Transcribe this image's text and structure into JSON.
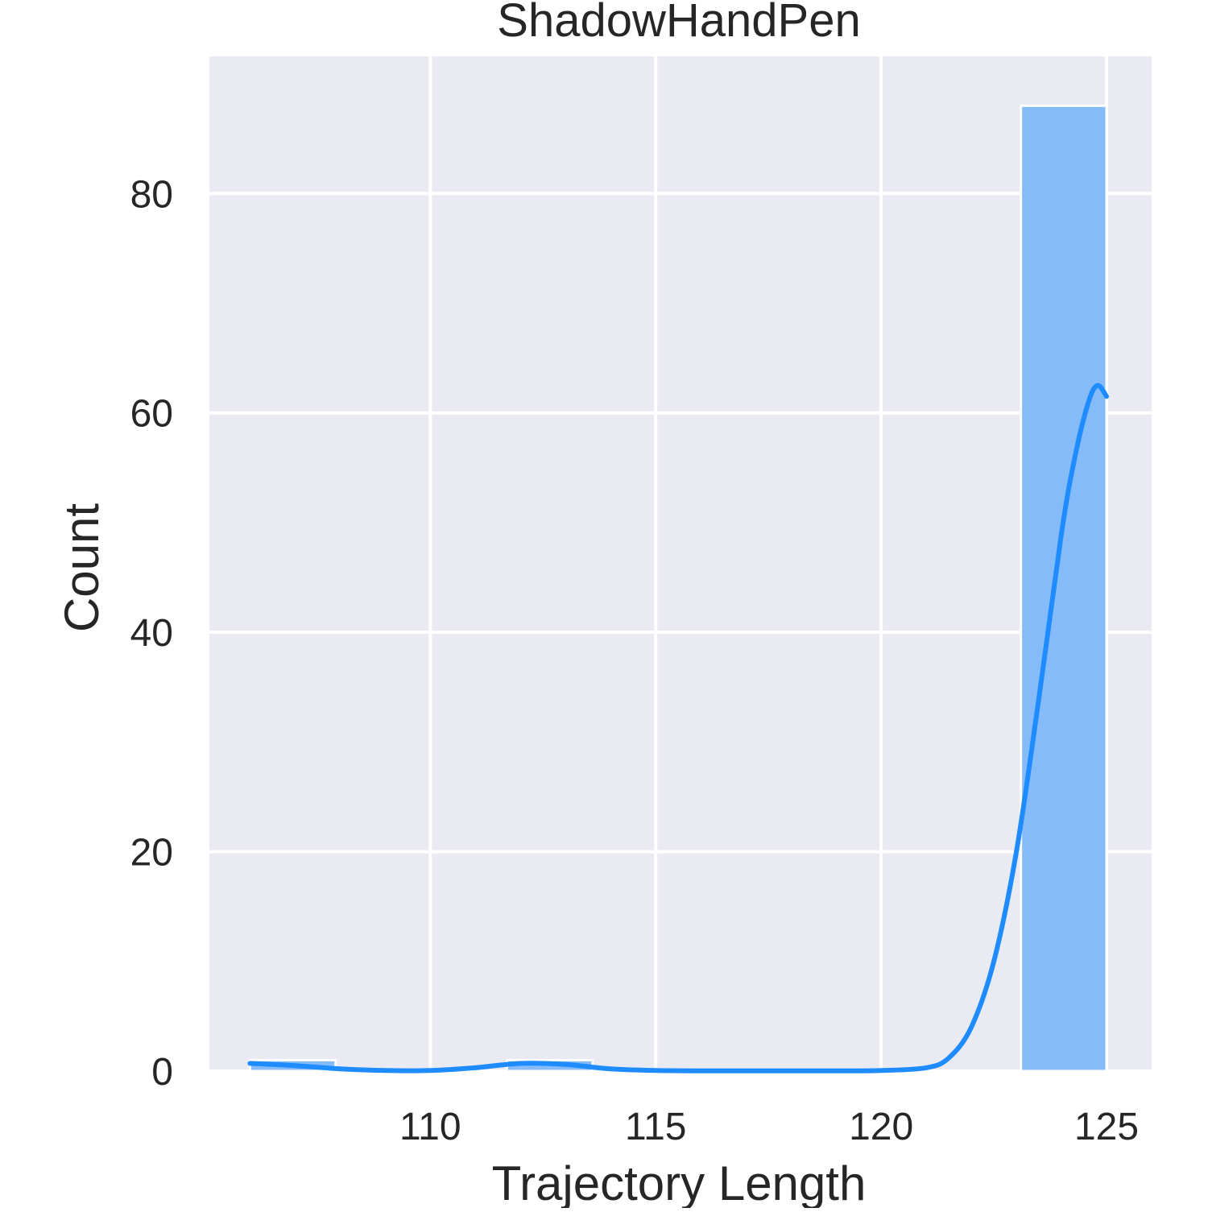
{
  "chart_data": {
    "type": "bar",
    "title": "ShadowHandPen",
    "xlabel": "Trajectory Length",
    "ylabel": "Count",
    "xlim": [
      105.1,
      126.0
    ],
    "ylim": [
      0,
      92.5
    ],
    "x_ticks": [
      110,
      115,
      120,
      125
    ],
    "y_ticks": [
      0,
      20,
      40,
      60,
      80
    ],
    "grid": true,
    "bins": [
      {
        "start": 106.0,
        "end": 107.9,
        "count": 1
      },
      {
        "start": 107.9,
        "end": 109.8,
        "count": 0
      },
      {
        "start": 109.8,
        "end": 111.7,
        "count": 0
      },
      {
        "start": 111.7,
        "end": 113.6,
        "count": 1
      },
      {
        "start": 113.6,
        "end": 115.5,
        "count": 0
      },
      {
        "start": 115.5,
        "end": 117.4,
        "count": 0
      },
      {
        "start": 117.4,
        "end": 119.3,
        "count": 0
      },
      {
        "start": 119.3,
        "end": 121.2,
        "count": 0
      },
      {
        "start": 121.2,
        "end": 123.1,
        "count": 0
      },
      {
        "start": 123.1,
        "end": 125.0,
        "count": 88
      }
    ],
    "kde": {
      "x": [
        106.0,
        107.0,
        108.0,
        109.0,
        110.0,
        111.0,
        112.0,
        113.0,
        114.0,
        115.0,
        116.0,
        117.0,
        118.0,
        119.0,
        120.0,
        121.0,
        121.5,
        122.0,
        122.5,
        123.0,
        123.5,
        124.0,
        124.3,
        124.6,
        124.8,
        125.0
      ],
      "y": [
        0.7,
        0.5,
        0.2,
        0.05,
        0.05,
        0.3,
        0.7,
        0.6,
        0.2,
        0.05,
        0.02,
        0.02,
        0.02,
        0.02,
        0.05,
        0.3,
        1.2,
        4.0,
        10.0,
        20.0,
        34.0,
        49.0,
        56.0,
        61.0,
        62.5,
        61.5
      ]
    },
    "colors": {
      "bar_fill": "#85bbf8",
      "bar_edge": "#ffffff",
      "kde_line": "#1e8cff",
      "plot_background": "#eaeaf2",
      "grid": "#ffffff",
      "text": "#262626"
    }
  }
}
